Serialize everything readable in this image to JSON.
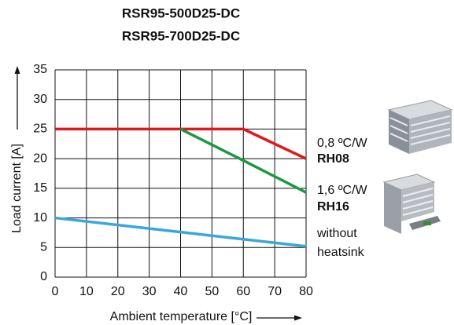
{
  "chart_data": {
    "type": "line",
    "title_lines": [
      "RSR95-500D25-DC",
      "RSR95-700D25-DC"
    ],
    "x_label": "Ambient temperature [°C]",
    "y_label": "Load current [A]",
    "x": [
      0,
      40,
      60,
      80
    ],
    "series": [
      {
        "label": [
          "0,8 ºC/W",
          "RH08"
        ],
        "label_bold": [
          false,
          true
        ],
        "color": "#e3161d",
        "values": [
          25,
          25,
          25,
          20
        ]
      },
      {
        "label": [
          "1,6 ºC/W",
          "RH16"
        ],
        "label_bold": [
          false,
          true
        ],
        "color": "#1a9940",
        "values": [
          null,
          25,
          19.7,
          14.3
        ]
      },
      {
        "label": [
          "without",
          "heatsink"
        ],
        "label_bold": [
          false,
          false
        ],
        "color": "#3aa7dc",
        "values": [
          10,
          7.6,
          6.4,
          5.2
        ]
      }
    ],
    "xlim": [
      0,
      80
    ],
    "xticks": [
      0,
      10,
      20,
      30,
      40,
      50,
      60,
      70,
      80
    ],
    "ylim": [
      0,
      35
    ],
    "yticks": [
      0,
      5,
      10,
      15,
      20,
      25,
      30,
      35
    ],
    "grid": true
  }
}
